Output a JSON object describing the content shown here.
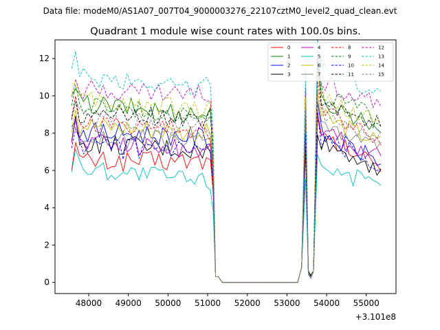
{
  "chart_data": {
    "type": "line",
    "suptitle": "Data file: modeM0/AS1A07_007T04_9000003276_22107cztM0_level2_quad_clean.evt",
    "title": "Quadrant 1 module wise count rates with 100.0s bins.",
    "xlabel": "",
    "ylabel": "",
    "offset_label": "+3.101e8",
    "xlim": [
      47150,
      55750
    ],
    "ylim": [
      -0.6,
      13.0
    ],
    "xticks": [
      48000,
      49000,
      50000,
      51000,
      52000,
      53000,
      54000,
      55000
    ],
    "xtick_labels": [
      "48000",
      "49000",
      "50000",
      "51000",
      "52000",
      "53000",
      "54000",
      "55000"
    ],
    "yticks": [
      0,
      2,
      4,
      6,
      8,
      10,
      12
    ],
    "ytick_labels": [
      "0",
      "2",
      "4",
      "6",
      "8",
      "10",
      "12"
    ],
    "grid": false,
    "legend_position": "top-right",
    "x": [
      47570,
      47670,
      47770,
      47870,
      47970,
      48070,
      48170,
      48270,
      48370,
      48470,
      48570,
      48670,
      48770,
      48870,
      48970,
      49070,
      49170,
      49270,
      49370,
      49470,
      49570,
      49670,
      49770,
      49870,
      49970,
      50070,
      50170,
      50270,
      50370,
      50470,
      50570,
      50670,
      50770,
      50870,
      50970,
      51070,
      51140,
      51200,
      51270,
      51370,
      51470,
      51570,
      51670,
      51770,
      51870,
      51970,
      52070,
      52170,
      52270,
      52370,
      52470,
      52570,
      52670,
      52770,
      52870,
      52970,
      53070,
      53170,
      53270,
      53370,
      53470,
      53540,
      53600,
      53670,
      53770,
      53870,
      53970,
      54070,
      54170,
      54270,
      54370,
      54470,
      54570,
      54670,
      54770,
      54870,
      54970,
      55070,
      55170,
      55270,
      55370
    ],
    "series": [
      {
        "name": "0",
        "color": "#ff0000",
        "dash": "solid",
        "levels": [
          6.5,
          6.5,
          6.8
        ]
      },
      {
        "name": "1",
        "color": "#008000",
        "dash": "solid",
        "levels": [
          9.6,
          9.0,
          8.8
        ]
      },
      {
        "name": "2",
        "color": "#0000ff",
        "dash": "solid",
        "levels": [
          8.1,
          7.8,
          7.0
        ]
      },
      {
        "name": "3",
        "color": "#000000",
        "dash": "solid",
        "levels": [
          7.5,
          7.0,
          6.6
        ]
      },
      {
        "name": "4",
        "color": "#bf00bf",
        "dash": "solid",
        "levels": [
          7.6,
          7.1,
          7.2
        ]
      },
      {
        "name": "5",
        "color": "#00bfbf",
        "dash": "solid",
        "levels": [
          6.2,
          5.4,
          5.5
        ]
      },
      {
        "name": "6",
        "color": "#bfbf00",
        "dash": "solid",
        "levels": [
          8.5,
          8.0,
          8.0
        ]
      },
      {
        "name": "7",
        "color": "#808080",
        "dash": "solid",
        "levels": [
          7.8,
          7.5,
          7.6
        ]
      },
      {
        "name": "8",
        "color": "#ff0000",
        "dash": "dashed",
        "levels": [
          8.6,
          8.1,
          8.3
        ]
      },
      {
        "name": "9",
        "color": "#008000",
        "dash": "dashed",
        "levels": [
          9.4,
          9.1,
          9.2
        ]
      },
      {
        "name": "10",
        "color": "#0000ff",
        "dash": "dashed",
        "levels": [
          7.3,
          6.9,
          6.8
        ]
      },
      {
        "name": "11",
        "color": "#000000",
        "dash": "dashed",
        "levels": [
          9.0,
          8.8,
          8.9
        ]
      },
      {
        "name": "12",
        "color": "#bf00bf",
        "dash": "dashed",
        "levels": [
          10.4,
          10.0,
          9.9
        ]
      },
      {
        "name": "13",
        "color": "#00bfbf",
        "dash": "dashed",
        "levels": [
          11.0,
          10.5,
          10.6
        ]
      },
      {
        "name": "14",
        "color": "#bfbf00",
        "dash": "dashed",
        "levels": [
          9.7,
          9.3,
          9.0
        ]
      },
      {
        "name": "15",
        "color": "#808080",
        "dash": "dashed",
        "levels": [
          8.8,
          8.3,
          8.2
        ]
      }
    ]
  }
}
